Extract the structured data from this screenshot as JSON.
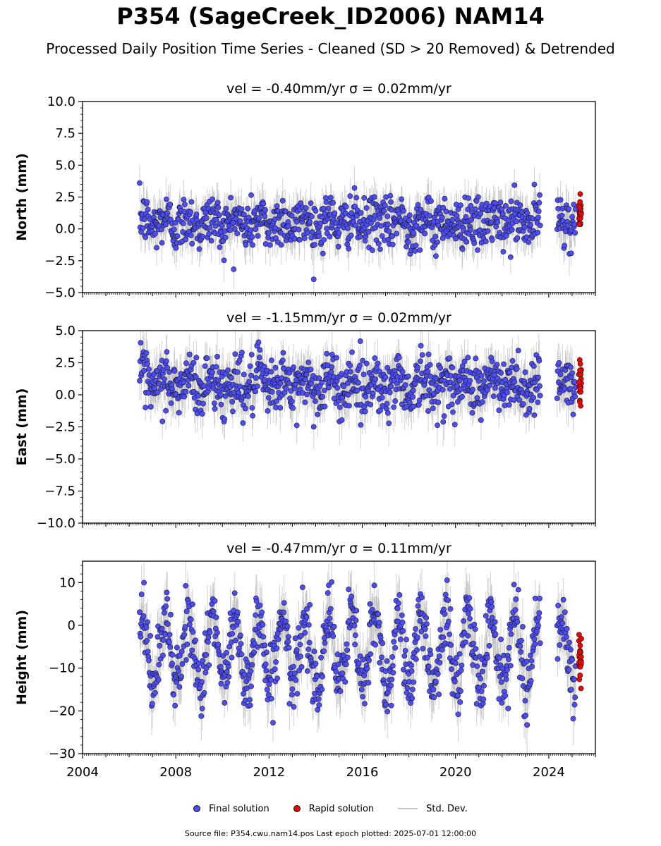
{
  "title": "P354 (SageCreek_ID2006) NAM14",
  "subtitle": "Processed Daily Position Time Series - Cleaned (SD > 20 Removed) & Detrended",
  "source_note": "Source file: P354.cwu.nam14.pos  Last epoch plotted: 2025-07-01 12:00:00",
  "legend": {
    "final": "Final solution",
    "rapid": "Rapid solution",
    "std": "Std. Dev."
  },
  "colors": {
    "final": "#4d4dff",
    "rapid": "#ee0000",
    "std": "#9a9a9a",
    "edge": "#1a1a1a"
  },
  "chart_data": [
    {
      "type": "scatter",
      "panel": "north",
      "title": "vel = -0.40mm/yr   σ = 0.02mm/yr",
      "ylabel": "North (mm)",
      "xlim": [
        2004,
        2026
      ],
      "ylim": [
        -5,
        10
      ],
      "yticks": [
        "10.0",
        "7.5",
        "5.0",
        "2.5",
        "0.0",
        "−2.5",
        "−5.0"
      ],
      "ytick_values": [
        10,
        7.5,
        5,
        2.5,
        0,
        -2.5,
        -5
      ],
      "series": [
        {
          "name": "Final solution",
          "x_range": [
            2006.45,
            2025.15
          ],
          "gap": [
            2023.65,
            2024.35
          ],
          "center": 0.5,
          "spread": 1.0,
          "seasonal": 0.4
        },
        {
          "name": "Rapid solution",
          "x_range": [
            2025.2,
            2025.5
          ],
          "center": 1.3,
          "spread": 0.5
        }
      ]
    },
    {
      "type": "scatter",
      "panel": "east",
      "title": "vel = -1.15mm/yr   σ = 0.02mm/yr",
      "ylabel": "East (mm)",
      "xlim": [
        2004,
        2026
      ],
      "ylim": [
        -10,
        5
      ],
      "yticks": [
        "5.0",
        "2.5",
        "0.0",
        "−2.5",
        "−5.0",
        "−7.5",
        "−10.0"
      ],
      "ytick_values": [
        5,
        2.5,
        0,
        -2.5,
        -5,
        -7.5,
        -10
      ],
      "series": [
        {
          "name": "Final solution",
          "x_range": [
            2006.45,
            2025.15
          ],
          "gap": [
            2023.65,
            2024.35
          ],
          "center": 0.8,
          "spread": 1.1,
          "seasonal": 0.6
        },
        {
          "name": "Rapid solution",
          "x_range": [
            2025.2,
            2025.5
          ],
          "center": 0.6,
          "spread": 1.0
        }
      ]
    },
    {
      "type": "scatter",
      "panel": "height",
      "title": "vel = -0.47mm/yr   σ = 0.11mm/yr",
      "ylabel": "Height (mm)",
      "xlim": [
        2004,
        2026
      ],
      "ylim": [
        -30,
        15
      ],
      "yticks": [
        "10",
        "0",
        "−10",
        "−20",
        "−30"
      ],
      "ytick_values": [
        10,
        0,
        -10,
        -20,
        -30
      ],
      "xticks": [
        "2004",
        "2008",
        "2012",
        "2016",
        "2020",
        "2024"
      ],
      "xtick_values": [
        2004,
        2008,
        2012,
        2016,
        2020,
        2024
      ],
      "series": [
        {
          "name": "Final solution",
          "x_range": [
            2006.45,
            2025.15
          ],
          "gap": [
            2023.65,
            2024.35
          ],
          "center": -6.0,
          "spread": 3.8,
          "seasonal": 8.0
        },
        {
          "name": "Rapid solution",
          "x_range": [
            2025.2,
            2025.5
          ],
          "center": -7.5,
          "spread": 2.5
        }
      ]
    }
  ]
}
